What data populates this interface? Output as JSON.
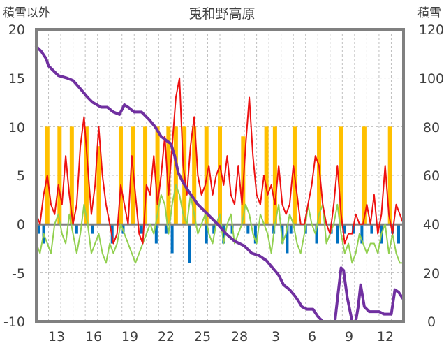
{
  "chart_data": {
    "type": "line",
    "title": "兎和野高原",
    "ylabel_left": "積雪以外",
    "ylabel_right": "積雪",
    "ylim_left": [
      -10,
      20
    ],
    "ylim_right": [
      0,
      120
    ],
    "yticks_left": [
      "20",
      "15",
      "10",
      "5",
      "0",
      "-5",
      "-10"
    ],
    "yticks_right": [
      "120",
      "100",
      "80",
      "60",
      "40",
      "20",
      "0"
    ],
    "xticks": [
      "13",
      "16",
      "19",
      "22",
      "25",
      "28",
      "3",
      "6",
      "9",
      "12"
    ],
    "x_range_days": [
      11,
      41
    ],
    "xtick_days": [
      13,
      16,
      19,
      22,
      25,
      28,
      31,
      34,
      37,
      40
    ],
    "grid": true,
    "colors": {
      "max_temp": "#ee1111",
      "min_temp": "#92d050",
      "snow_depth": "#7030a0",
      "sunshine": "#ffc000",
      "precip": "#0070c0",
      "frame": "#808080"
    },
    "series": [
      {
        "name": "snow-depth",
        "axis": "right",
        "x": [
          11.0,
          11.4,
          11.8,
          12.0,
          12.4,
          12.8,
          13.5,
          14.0,
          14.7,
          15.2,
          15.6,
          16.3,
          16.8,
          17.3,
          17.8,
          18.2,
          18.5,
          19.0,
          19.6,
          20.2,
          20.7,
          21.2,
          21.7,
          22.0,
          22.3,
          22.6,
          23.0,
          23.5,
          24.2,
          25.0,
          25.8,
          26.5,
          27.2,
          28.0,
          28.6,
          29.2,
          29.8,
          30.3,
          30.8,
          31.2,
          31.7,
          32.2,
          32.7,
          33.1,
          33.6,
          34.0,
          34.4,
          34.8,
          35.1,
          35.4,
          35.6,
          35.9,
          36.1,
          36.4,
          36.8,
          37.1,
          37.3,
          37.5,
          37.8,
          38.2,
          38.6,
          39.0,
          39.4,
          39.8,
          40.0,
          40.3,
          40.6,
          41.0
        ],
        "values": [
          113,
          111,
          108,
          105,
          103,
          101,
          100,
          99,
          95,
          92,
          90,
          88,
          88,
          86,
          85,
          89,
          88,
          86,
          86,
          83,
          80,
          76,
          74,
          73,
          68,
          61,
          57,
          53,
          48,
          44,
          40,
          36,
          33,
          31,
          28,
          27,
          25,
          22,
          19,
          15,
          13,
          10,
          6,
          5,
          5,
          2,
          0,
          0,
          0,
          0,
          9,
          22,
          21,
          10,
          0,
          0,
          6,
          15,
          6,
          4,
          4,
          4,
          3,
          3,
          3,
          13,
          12,
          9
        ]
      },
      {
        "name": "max-temp",
        "axis": "left",
        "x": [
          11.0,
          11.3,
          11.6,
          11.9,
          12.2,
          12.5,
          12.8,
          13.1,
          13.4,
          13.7,
          14.0,
          14.3,
          14.6,
          14.9,
          15.2,
          15.5,
          15.8,
          16.1,
          16.4,
          16.7,
          17.0,
          17.3,
          17.6,
          17.9,
          18.2,
          18.5,
          18.8,
          19.1,
          19.4,
          19.7,
          20.0,
          20.3,
          20.6,
          20.9,
          21.2,
          21.5,
          21.8,
          22.1,
          22.4,
          22.7,
          23.0,
          23.3,
          23.6,
          23.9,
          24.2,
          24.5,
          24.8,
          25.1,
          25.4,
          25.7,
          26.0,
          26.3,
          26.6,
          26.9,
          27.2,
          27.5,
          27.8,
          28.1,
          28.4,
          28.7,
          29.0,
          29.3,
          29.6,
          29.9,
          30.2,
          30.5,
          30.8,
          31.1,
          31.4,
          31.7,
          32.0,
          32.3,
          32.6,
          32.9,
          33.2,
          33.5,
          33.8,
          34.1,
          34.4,
          34.7,
          35.0,
          35.3,
          35.6,
          35.9,
          36.2,
          36.5,
          36.8,
          37.1,
          37.4,
          37.7,
          38.0,
          38.3,
          38.6,
          38.9,
          39.2,
          39.5,
          39.8,
          40.1,
          40.4,
          40.7,
          41.0
        ],
        "values": [
          1,
          0,
          3,
          5,
          2,
          1,
          4,
          2,
          7,
          3,
          0,
          2,
          8,
          11,
          6,
          1,
          4,
          10,
          5,
          2,
          0,
          -2,
          -1,
          4,
          2,
          0,
          7,
          3,
          -1,
          -2,
          4,
          3,
          7,
          2,
          5,
          9,
          3,
          8,
          13,
          15,
          6,
          3,
          8,
          11,
          5,
          3,
          4,
          6,
          3,
          5,
          6,
          4,
          7,
          3,
          2,
          6,
          2,
          8,
          13,
          7,
          3,
          2,
          5,
          3,
          4,
          2,
          6,
          2,
          1,
          2,
          6,
          3,
          0,
          0,
          2,
          4,
          7,
          6,
          2,
          0,
          -1,
          2,
          6,
          1,
          -2,
          -1,
          -1,
          1,
          0,
          0,
          2,
          0,
          3,
          -1,
          1,
          6,
          1,
          -1,
          2,
          1,
          0
        ]
      },
      {
        "name": "min-temp",
        "axis": "left",
        "x": [
          11.0,
          11.3,
          11.6,
          11.9,
          12.2,
          12.5,
          12.8,
          13.1,
          13.4,
          13.7,
          14.0,
          14.3,
          14.6,
          14.9,
          15.2,
          15.5,
          15.8,
          16.1,
          16.4,
          16.7,
          17.0,
          17.3,
          17.6,
          17.9,
          18.2,
          18.5,
          18.8,
          19.1,
          19.4,
          19.7,
          20.0,
          20.3,
          20.6,
          20.9,
          21.2,
          21.5,
          21.8,
          22.1,
          22.4,
          22.7,
          23.0,
          23.3,
          23.6,
          23.9,
          24.2,
          24.5,
          24.8,
          25.1,
          25.4,
          25.7,
          26.0,
          26.3,
          26.6,
          26.9,
          27.2,
          27.5,
          27.8,
          28.1,
          28.4,
          28.7,
          29.0,
          29.3,
          29.6,
          29.9,
          30.2,
          30.5,
          30.8,
          31.1,
          31.4,
          31.7,
          32.0,
          32.3,
          32.6,
          32.9,
          33.2,
          33.5,
          33.8,
          34.1,
          34.4,
          34.7,
          35.0,
          35.3,
          35.6,
          35.9,
          36.2,
          36.5,
          36.8,
          37.1,
          37.4,
          37.7,
          38.0,
          38.3,
          38.6,
          38.9,
          39.2,
          39.5,
          39.8,
          40.1,
          40.4,
          40.7,
          41.0
        ],
        "values": [
          -2,
          -3,
          -1,
          -2,
          -3,
          0,
          1,
          -1,
          -2,
          1,
          -1,
          -3,
          -1,
          2,
          0,
          -3,
          -2,
          -1,
          -3,
          -4,
          -2,
          -3,
          -2,
          0,
          -1,
          -2,
          -3,
          -4,
          -3,
          -2,
          -1,
          0,
          -1,
          1,
          3,
          2,
          -1,
          2,
          4,
          3,
          1,
          0,
          3,
          1,
          -1,
          0,
          1,
          -1,
          -2,
          0,
          1,
          -2,
          0,
          1,
          -2,
          -1,
          0,
          2,
          1,
          -1,
          -2,
          1,
          0,
          -1,
          -3,
          0,
          2,
          -2,
          -1,
          1,
          0,
          -2,
          -3,
          -1,
          2,
          0,
          -1,
          1,
          2,
          -2,
          -1,
          0,
          2,
          -1,
          -3,
          -2,
          -4,
          -3,
          -1,
          -2,
          -3,
          -2,
          -2,
          -3,
          -1,
          0,
          -3,
          -1,
          -3,
          -4,
          -4
        ]
      },
      {
        "name": "sunshine-hours",
        "axis": "left",
        "type": "bar",
        "x": [
          11.9,
          12.9,
          13.9,
          15.1,
          16.1,
          17.9,
          18.9,
          19.9,
          20.9,
          21.8,
          22.4,
          23.1,
          23.9,
          24.9,
          26.0,
          27.9,
          29.8,
          30.5,
          32.1,
          34.1,
          35.9,
          37.8,
          39.9
        ],
        "values": [
          10,
          10,
          10,
          10,
          8,
          10,
          10,
          10,
          10,
          10,
          10,
          10,
          10,
          10,
          10,
          9,
          10,
          10,
          10,
          10,
          10,
          10,
          10
        ]
      },
      {
        "name": "precipitation",
        "axis": "left",
        "type": "bar",
        "x": [
          11.2,
          11.6,
          14.3,
          15.6,
          17.2,
          18.1,
          19.6,
          20.8,
          21.6,
          22.1,
          23.5,
          24.9,
          25.5,
          26.3,
          27.0,
          28.3,
          28.9,
          30.4,
          31.1,
          31.5,
          31.8,
          33.0,
          33.9,
          35.1,
          35.6,
          36.2,
          36.9,
          37.6,
          38.4,
          39.2,
          40.1,
          40.6
        ],
        "values": [
          -1,
          -2,
          -1,
          -1,
          -2,
          -1,
          -1,
          -2,
          -1,
          -3,
          -4,
          -2,
          -1,
          -2,
          -1,
          -1,
          -2,
          -1,
          -2,
          -3,
          -1,
          -1,
          -2,
          -1,
          -2,
          -1,
          -1,
          -2,
          -1,
          -2,
          -1,
          -2
        ]
      }
    ]
  }
}
